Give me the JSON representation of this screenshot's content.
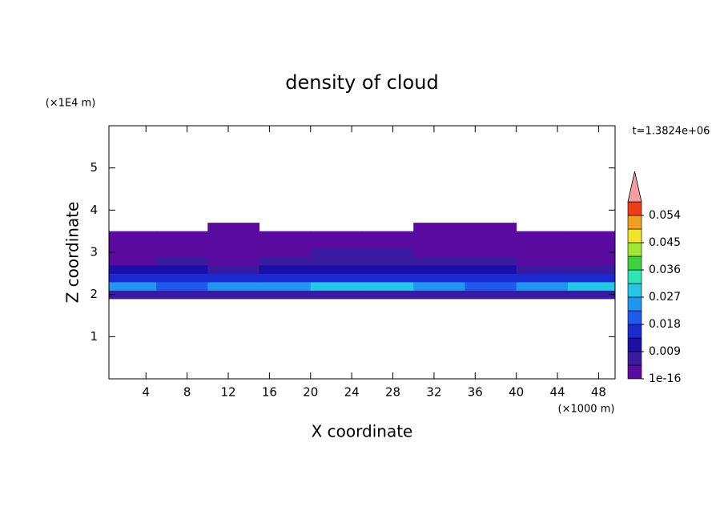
{
  "chart_data": {
    "type": "contour",
    "title": "density of cloud",
    "x_label": "X coordinate",
    "y_label": "Z coordinate",
    "x_unit": "(×1000 m)",
    "y_unit": "(×1E4 m)",
    "time_label": "t=1.3824e+06",
    "x": [
      2.5,
      7.5,
      12.5,
      17.5,
      22.5,
      27.5,
      32.5,
      37.5,
      42.5,
      47.5
    ],
    "z": [
      2.0,
      2.2,
      2.4,
      2.6,
      2.8,
      3.0,
      3.2,
      3.4,
      3.6
    ],
    "values": [
      [
        0.005,
        0.006,
        0.005,
        0.006,
        0.006,
        0.005,
        0.006,
        0.005,
        0.006,
        0.005
      ],
      [
        0.024,
        0.022,
        0.026,
        0.024,
        0.029,
        0.027,
        0.024,
        0.022,
        0.025,
        0.028
      ],
      [
        0.016,
        0.014,
        0.015,
        0.017,
        0.016,
        0.015,
        0.014,
        0.016,
        0.015,
        0.014
      ],
      [
        0.01,
        0.009,
        0.008,
        0.009,
        0.01,
        0.011,
        0.01,
        0.009,
        0.008,
        0.007
      ],
      [
        0.004,
        0.005,
        0.004,
        0.005,
        0.006,
        0.006,
        0.005,
        0.005,
        0.004,
        0.004
      ],
      [
        0.003,
        0.003,
        0.002,
        0.002,
        0.005,
        0.005,
        0.004,
        0.003,
        0.003,
        0.003
      ],
      [
        0.002,
        0.002,
        0.002,
        0.002,
        0.003,
        0.004,
        0.003,
        0.002,
        0.002,
        0.002
      ],
      [
        0.001,
        0.001,
        0.001,
        0.001,
        0.001,
        0.002,
        0.002,
        0.002,
        0.002,
        0.001
      ],
      [
        null,
        null,
        0.001,
        null,
        null,
        null,
        0.001,
        0.001,
        null,
        null
      ]
    ],
    "xlim": [
      0.4,
      49.6
    ],
    "ylim": [
      0,
      6
    ],
    "xticks": [
      4,
      8,
      12,
      16,
      20,
      24,
      28,
      32,
      36,
      40,
      44,
      48
    ],
    "yticks": [
      1,
      2,
      3,
      4,
      5
    ],
    "colorbar_ticks": [
      1e-16,
      0.009,
      0.018,
      0.027,
      0.036,
      0.045,
      0.054
    ],
    "colors": [
      "#5a0a9e",
      "#3a1aa0",
      "#1a10a8",
      "#1a2ad0",
      "#1e5aee",
      "#2196f0",
      "#23c8e6",
      "#2ce6b4",
      "#3cd23c",
      "#a0e632",
      "#f0e628",
      "#f0a01e",
      "#f03c14"
    ],
    "over_color": "#f0a0a0"
  }
}
